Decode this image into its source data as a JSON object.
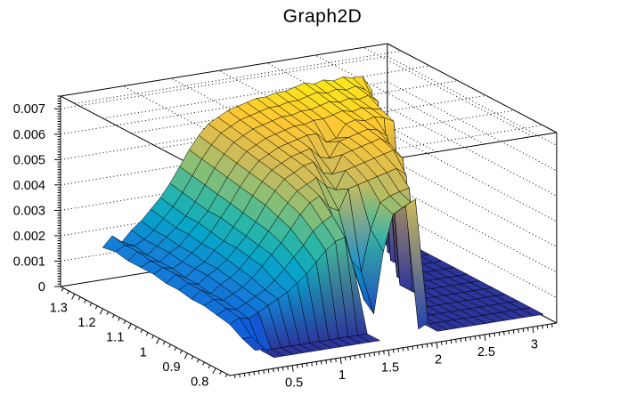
{
  "title": "Graph2D",
  "chart_data": {
    "type": "surface3d",
    "title": "Graph2D",
    "x_axis": {
      "labels": [
        "0.5",
        "1",
        "1.5",
        "2",
        "2.5",
        "3"
      ],
      "values": [
        0.5,
        1.0,
        1.5,
        2.0,
        2.5,
        3.0
      ],
      "range": [
        -0.15,
        3.25
      ],
      "minor_step": 0.05
    },
    "y_axis": {
      "labels": [
        "1.3",
        "1.2",
        "1.1",
        "1",
        "0.9",
        "0.8"
      ],
      "values": [
        1.3,
        1.2,
        1.1,
        1.0,
        0.9,
        0.8
      ],
      "range": [
        0.75,
        1.35
      ],
      "minor_step": 0.02
    },
    "z_axis": {
      "labels": [
        "0",
        "0.001",
        "0.002",
        "0.003",
        "0.004",
        "0.005",
        "0.006",
        "0.007"
      ],
      "values": [
        0,
        0.001,
        0.002,
        0.003,
        0.004,
        0.005,
        0.006,
        0.007
      ],
      "range": [
        0,
        0.0075
      ],
      "minor_step": 0.0001
    },
    "palette": [
      "#352a87",
      "#0f5cdd",
      "#1481d6",
      "#06a4ca",
      "#2eb7a4",
      "#87bf77",
      "#d1bb59",
      "#fec832",
      "#f9fb0e"
    ],
    "palette_max": 70,
    "grid_on_walls": true,
    "surface": {
      "x_start": 0.2,
      "x_step": 0.1,
      "y_start": 0.78,
      "y_step": 0.045,
      "z_unit": 0.0001,
      "z_values": [
        [
          6,
          6,
          2,
          2,
          2,
          2,
          2,
          2,
          2,
          2,
          2,
          2,
          2,
          2,
          null,
          null,
          null,
          4,
          6,
          2,
          2,
          2,
          2,
          2,
          2,
          2,
          2,
          2,
          2,
          2,
          2
        ],
        [
          8,
          8,
          2,
          2,
          2,
          2,
          2,
          2,
          2,
          2,
          2,
          2,
          2,
          2,
          null,
          null,
          null,
          50,
          52,
          2,
          2,
          2,
          2,
          2,
          2,
          2,
          2,
          2,
          2,
          2,
          2
        ],
        [
          11,
          13,
          12,
          14,
          16,
          18,
          20,
          23,
          26,
          30,
          34,
          37,
          38,
          24,
          12,
          6,
          30,
          44,
          46,
          47,
          2,
          2,
          2,
          2,
          2,
          2,
          2,
          2,
          2,
          2,
          2
        ],
        [
          12,
          14,
          13,
          15,
          17,
          19,
          22,
          26,
          30,
          34,
          39,
          42,
          44,
          33,
          25,
          20,
          36,
          46,
          48,
          49,
          50,
          2,
          2,
          2,
          2,
          2,
          2,
          2,
          2,
          2,
          2
        ],
        [
          13,
          15,
          14,
          16,
          18,
          21,
          25,
          29,
          33,
          38,
          43,
          47,
          49,
          44,
          42,
          50,
          51,
          52,
          53,
          54,
          55,
          52,
          2,
          2,
          2,
          2,
          2,
          2,
          2,
          2,
          2
        ],
        [
          13,
          16,
          14,
          17,
          19,
          22,
          26,
          30,
          35,
          40,
          45,
          49,
          51,
          53,
          49,
          47,
          54,
          55,
          56,
          57,
          58,
          59,
          55,
          2,
          2,
          2,
          2,
          2,
          2,
          2,
          2
        ],
        [
          14,
          16,
          15,
          18,
          20,
          23,
          27,
          31,
          36,
          42,
          47,
          51,
          53,
          55,
          56,
          51,
          50,
          57,
          58,
          59,
          60,
          61,
          58,
          2,
          2,
          2,
          2,
          2,
          2,
          2,
          2
        ],
        [
          14,
          17,
          15,
          18,
          20,
          24,
          27,
          32,
          37,
          43,
          48,
          52,
          54,
          56,
          57,
          58,
          54,
          53,
          59,
          60,
          61,
          62,
          61,
          58,
          2,
          2,
          2,
          2,
          2,
          2,
          2
        ],
        [
          15,
          17,
          16,
          18,
          21,
          24,
          28,
          33,
          38,
          44,
          49,
          53,
          55,
          57,
          58,
          59,
          60,
          60,
          56,
          57,
          62,
          63,
          62,
          63,
          62,
          60,
          2,
          2,
          2,
          2,
          2
        ],
        [
          15,
          17,
          16,
          19,
          21,
          25,
          29,
          33,
          39,
          45,
          50,
          54,
          56,
          58,
          59,
          60,
          61,
          61,
          62,
          62,
          63,
          64,
          63,
          64,
          63,
          62,
          2,
          2,
          2,
          2,
          2
        ],
        [
          15,
          18,
          16,
          19,
          22,
          25,
          29,
          34,
          40,
          46,
          51,
          55,
          57,
          59,
          60,
          61,
          62,
          62,
          63,
          63,
          64,
          65,
          64,
          65,
          64,
          65,
          62,
          2,
          2,
          2,
          2
        ],
        [
          16,
          18,
          17,
          19,
          22,
          26,
          30,
          35,
          41,
          47,
          52,
          56,
          58,
          60,
          61,
          62,
          63,
          63,
          64,
          64,
          65,
          66,
          65,
          66,
          65,
          66,
          64,
          58,
          2,
          2,
          2
        ],
        [
          15,
          19,
          16,
          20,
          23,
          27,
          31,
          36,
          42,
          48,
          53,
          57,
          59,
          61,
          62,
          63,
          64,
          64,
          65,
          65,
          66,
          67,
          66,
          67,
          66,
          67,
          66,
          66,
          60,
          2,
          2
        ]
      ]
    }
  }
}
